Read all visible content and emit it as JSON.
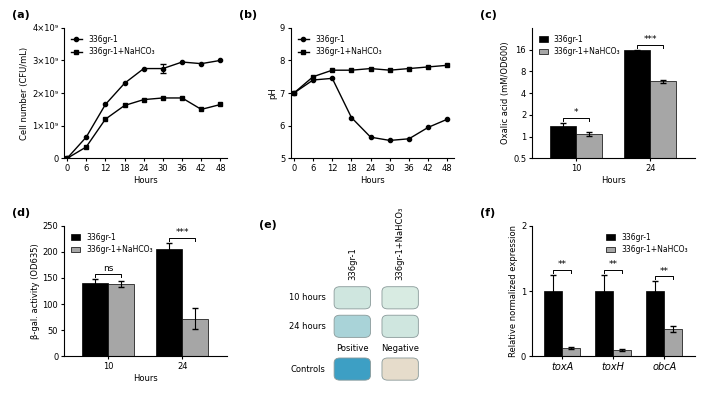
{
  "chart_data": [
    {
      "type": "line",
      "panel": "(a)",
      "xlabel": "Hours",
      "ylabel": "Cell number (CFU/mL)",
      "x": [
        0,
        6,
        12,
        18,
        24,
        30,
        36,
        42,
        48
      ],
      "series": [
        {
          "name": "336gr-1",
          "color": "#000000",
          "marker": "circle",
          "values": [
            0,
            650000000,
            1650000000,
            2300000000,
            2750000000,
            2750000000,
            2950000000,
            2900000000,
            3000000000
          ],
          "errors": [
            null,
            null,
            null,
            null,
            null,
            150000000,
            null,
            null,
            null
          ]
        },
        {
          "name": "336gr-1+NaHCO₃",
          "color": "#000000",
          "marker": "square",
          "values": [
            0,
            350000000,
            1200000000,
            1620000000,
            1800000000,
            1850000000,
            1850000000,
            1500000000,
            1650000000
          ],
          "errors": [
            null,
            null,
            null,
            null,
            null,
            null,
            null,
            null,
            null
          ]
        }
      ],
      "xlim": [
        -1,
        50
      ],
      "xticks": [
        0,
        6,
        12,
        18,
        24,
        30,
        36,
        42,
        48
      ],
      "ylim": [
        0,
        4000000000
      ],
      "yticks": [
        0,
        {
          "value": 1000000000,
          "label": "1×10⁹"
        },
        {
          "value": 2000000000,
          "label": "2×10⁹"
        },
        {
          "value": 3000000000,
          "label": "3×10⁹"
        },
        {
          "value": 4000000000,
          "label": "4×10⁹"
        }
      ],
      "legend": "upper left"
    },
    {
      "type": "line",
      "panel": "(b)",
      "xlabel": "Hours",
      "ylabel": "pH",
      "x": [
        0,
        6,
        12,
        18,
        24,
        30,
        36,
        42,
        48
      ],
      "series": [
        {
          "name": "336gr-1",
          "color": "#000000",
          "marker": "circle",
          "values": [
            7.0,
            7.4,
            7.45,
            6.25,
            5.65,
            5.55,
            5.6,
            5.95,
            6.2
          ]
        },
        {
          "name": "336gr-1+NaHCO₃",
          "color": "#000000",
          "marker": "square",
          "values": [
            7.0,
            7.5,
            7.7,
            7.7,
            7.75,
            7.7,
            7.75,
            7.8,
            7.85
          ]
        }
      ],
      "xlim": [
        -1,
        50
      ],
      "xticks": [
        0,
        6,
        12,
        18,
        24,
        30,
        36,
        42,
        48
      ],
      "ylim": [
        5,
        9
      ],
      "yticks": [
        5,
        6,
        7,
        8,
        9
      ],
      "legend": "upper left"
    },
    {
      "type": "bar",
      "panel": "(c)",
      "xlabel": "Hours",
      "ylabel": "Oxalic acid (mM/OD600)",
      "categories": [
        "10",
        "24"
      ],
      "series": [
        {
          "name": "336gr-1",
          "color": "#000000",
          "values": [
            1.4,
            15.5
          ],
          "errors": [
            0.15,
            0.4
          ]
        },
        {
          "name": "336gr-1+NaHCO₃",
          "color": "#a6a6a6",
          "values": [
            1.1,
            5.8
          ],
          "errors": [
            0.07,
            0.3
          ]
        }
      ],
      "significance": [
        "*",
        "***"
      ],
      "log": "y",
      "ylim": [
        0.5,
        32
      ],
      "yticks": [
        0.5,
        1,
        2,
        4,
        8,
        16
      ],
      "legend": "upper left"
    },
    {
      "type": "bar",
      "panel": "(d)",
      "xlabel": "Hours",
      "ylabel": "β-gal. activity (OD635)",
      "categories": [
        "10",
        "24"
      ],
      "series": [
        {
          "name": "336gr-1",
          "color": "#000000",
          "values": [
            140,
            205
          ],
          "errors": [
            8,
            12
          ]
        },
        {
          "name": "336gr-1+NaHCO₃",
          "color": "#a6a6a6",
          "values": [
            138,
            72
          ],
          "errors": [
            6,
            20
          ]
        }
      ],
      "significance": [
        "ns",
        "***"
      ],
      "ylim": [
        0,
        250
      ],
      "yticks": [
        0,
        50,
        100,
        150,
        200,
        250
      ],
      "legend": "upper left"
    },
    {
      "type": "wells",
      "panel": "(e)",
      "columns": [
        "336gr-1",
        "336gr-1+NaHCO₃"
      ],
      "rows": [
        "10 hours",
        "24 hours"
      ],
      "colors": [
        [
          "#cfe6df",
          "#d8ebe2"
        ],
        [
          "#a9d3d8",
          "#cfe6df"
        ]
      ],
      "controls": {
        "title": "Controls",
        "labels": [
          "Positive",
          "Negative"
        ],
        "colors": [
          "#3d9fc4",
          "#e6dccb"
        ]
      }
    },
    {
      "type": "bar",
      "panel": "(f)",
      "ylabel": "Relative normalized expression",
      "categories": [
        "toxA",
        "toxH",
        "obcA"
      ],
      "series": [
        {
          "name": "336gr-1",
          "color": "#000000",
          "values": [
            1.0,
            1.0,
            1.0
          ],
          "errors": [
            0.25,
            0.25,
            0.15
          ]
        },
        {
          "name": "336gr-1+NaHCO₃",
          "color": "#a6a6a6",
          "values": [
            0.13,
            0.1,
            0.42
          ],
          "errors": [
            0.02,
            0.02,
            0.05
          ]
        }
      ],
      "significance": [
        "**",
        "**",
        "**"
      ],
      "ylim": [
        0,
        2
      ],
      "yticks": [
        0,
        1,
        2
      ],
      "legend": "upper right"
    }
  ]
}
